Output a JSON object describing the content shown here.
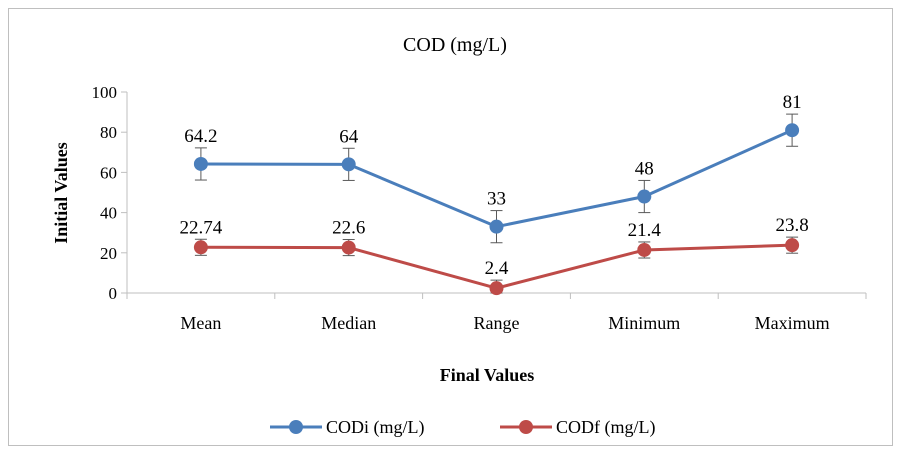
{
  "chart_data": {
    "type": "line",
    "title": "COD (mg/L)",
    "xlabel": "Final Values",
    "ylabel": "Initial Values",
    "categories": [
      "Mean",
      "Median",
      "Range",
      "Minimum",
      "Maximum"
    ],
    "ylim": [
      0,
      100
    ],
    "yticks": [
      "0",
      "20",
      "40",
      "60",
      "80",
      "100"
    ],
    "grid": false,
    "legend_position": "bottom",
    "series": [
      {
        "name": "CODi (mg/L)",
        "color": "#4a7ebb",
        "values": [
          64.2,
          64,
          33,
          48,
          81
        ],
        "labels": [
          "64.2",
          "64",
          "33",
          "48",
          "81"
        ],
        "error": [
          8,
          8,
          8,
          8,
          8
        ]
      },
      {
        "name": "CODf (mg/L)",
        "color": "#be4b48",
        "values": [
          22.74,
          22.6,
          2.4,
          21.4,
          23.8
        ],
        "labels": [
          "22.74",
          "22.6",
          "2.4",
          "21.4",
          "23.8"
        ],
        "error": [
          4,
          4,
          4,
          4,
          4
        ]
      }
    ]
  }
}
